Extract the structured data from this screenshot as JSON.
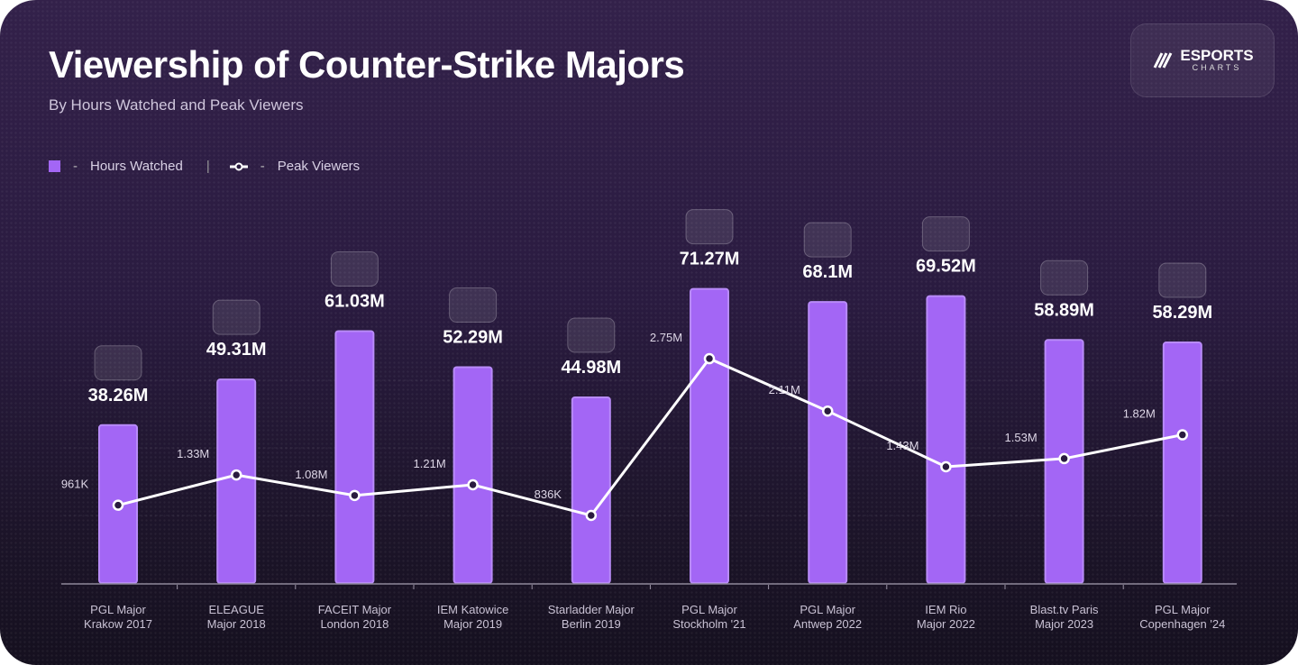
{
  "header": {
    "title": "Viewership of Counter-Strike Majors",
    "subtitle": "By Hours Watched and Peak Viewers"
  },
  "brand": {
    "line1": "ESPORTS",
    "line2": "CHARTS"
  },
  "legend": {
    "bars": "Hours Watched",
    "line": "Peak Viewers",
    "dash": "-",
    "sep": "|"
  },
  "colors": {
    "bar": "#a366f5",
    "line": "#ffffff"
  },
  "chart_data": {
    "type": "bar",
    "title": "Viewership of Counter-Strike Majors",
    "categories": [
      [
        "PGL Major",
        "Krakow 2017"
      ],
      [
        "ELEAGUE",
        "Major 2018"
      ],
      [
        "FACEIT Major",
        "London 2018"
      ],
      [
        "IEM Katowice",
        "Major 2019"
      ],
      [
        "Starladder Major",
        "Berlin 2019"
      ],
      [
        "PGL Major",
        "Stockholm '21"
      ],
      [
        "PGL Major",
        "Antwep 2022"
      ],
      [
        "IEM Rio",
        "Major 2022"
      ],
      [
        "Blast.tv Paris",
        "Major 2023"
      ],
      [
        "PGL Major",
        "Copenhagen '24"
      ]
    ],
    "series": [
      {
        "name": "Hours Watched",
        "type": "bar",
        "unit": "M",
        "values": [
          38.26,
          49.31,
          61.03,
          52.29,
          44.98,
          71.27,
          68.1,
          69.52,
          58.89,
          58.29
        ],
        "labels": [
          "38.26M",
          "49.31M",
          "61.03M",
          "52.29M",
          "44.98M",
          "71.27M",
          "68.1M",
          "69.52M",
          "58.89M",
          "58.29M"
        ]
      },
      {
        "name": "Peak Viewers",
        "type": "line",
        "unit": "M",
        "values": [
          0.961,
          1.33,
          1.08,
          1.21,
          0.836,
          2.75,
          2.11,
          1.43,
          1.53,
          1.82
        ],
        "labels": [
          "961K",
          "1.33M",
          "1.08M",
          "1.21M",
          "836K",
          "2.75M",
          "2.11M",
          "1.43M",
          "1.53M",
          "1.82M"
        ]
      }
    ],
    "grid": true,
    "legend_position": "top-left"
  }
}
